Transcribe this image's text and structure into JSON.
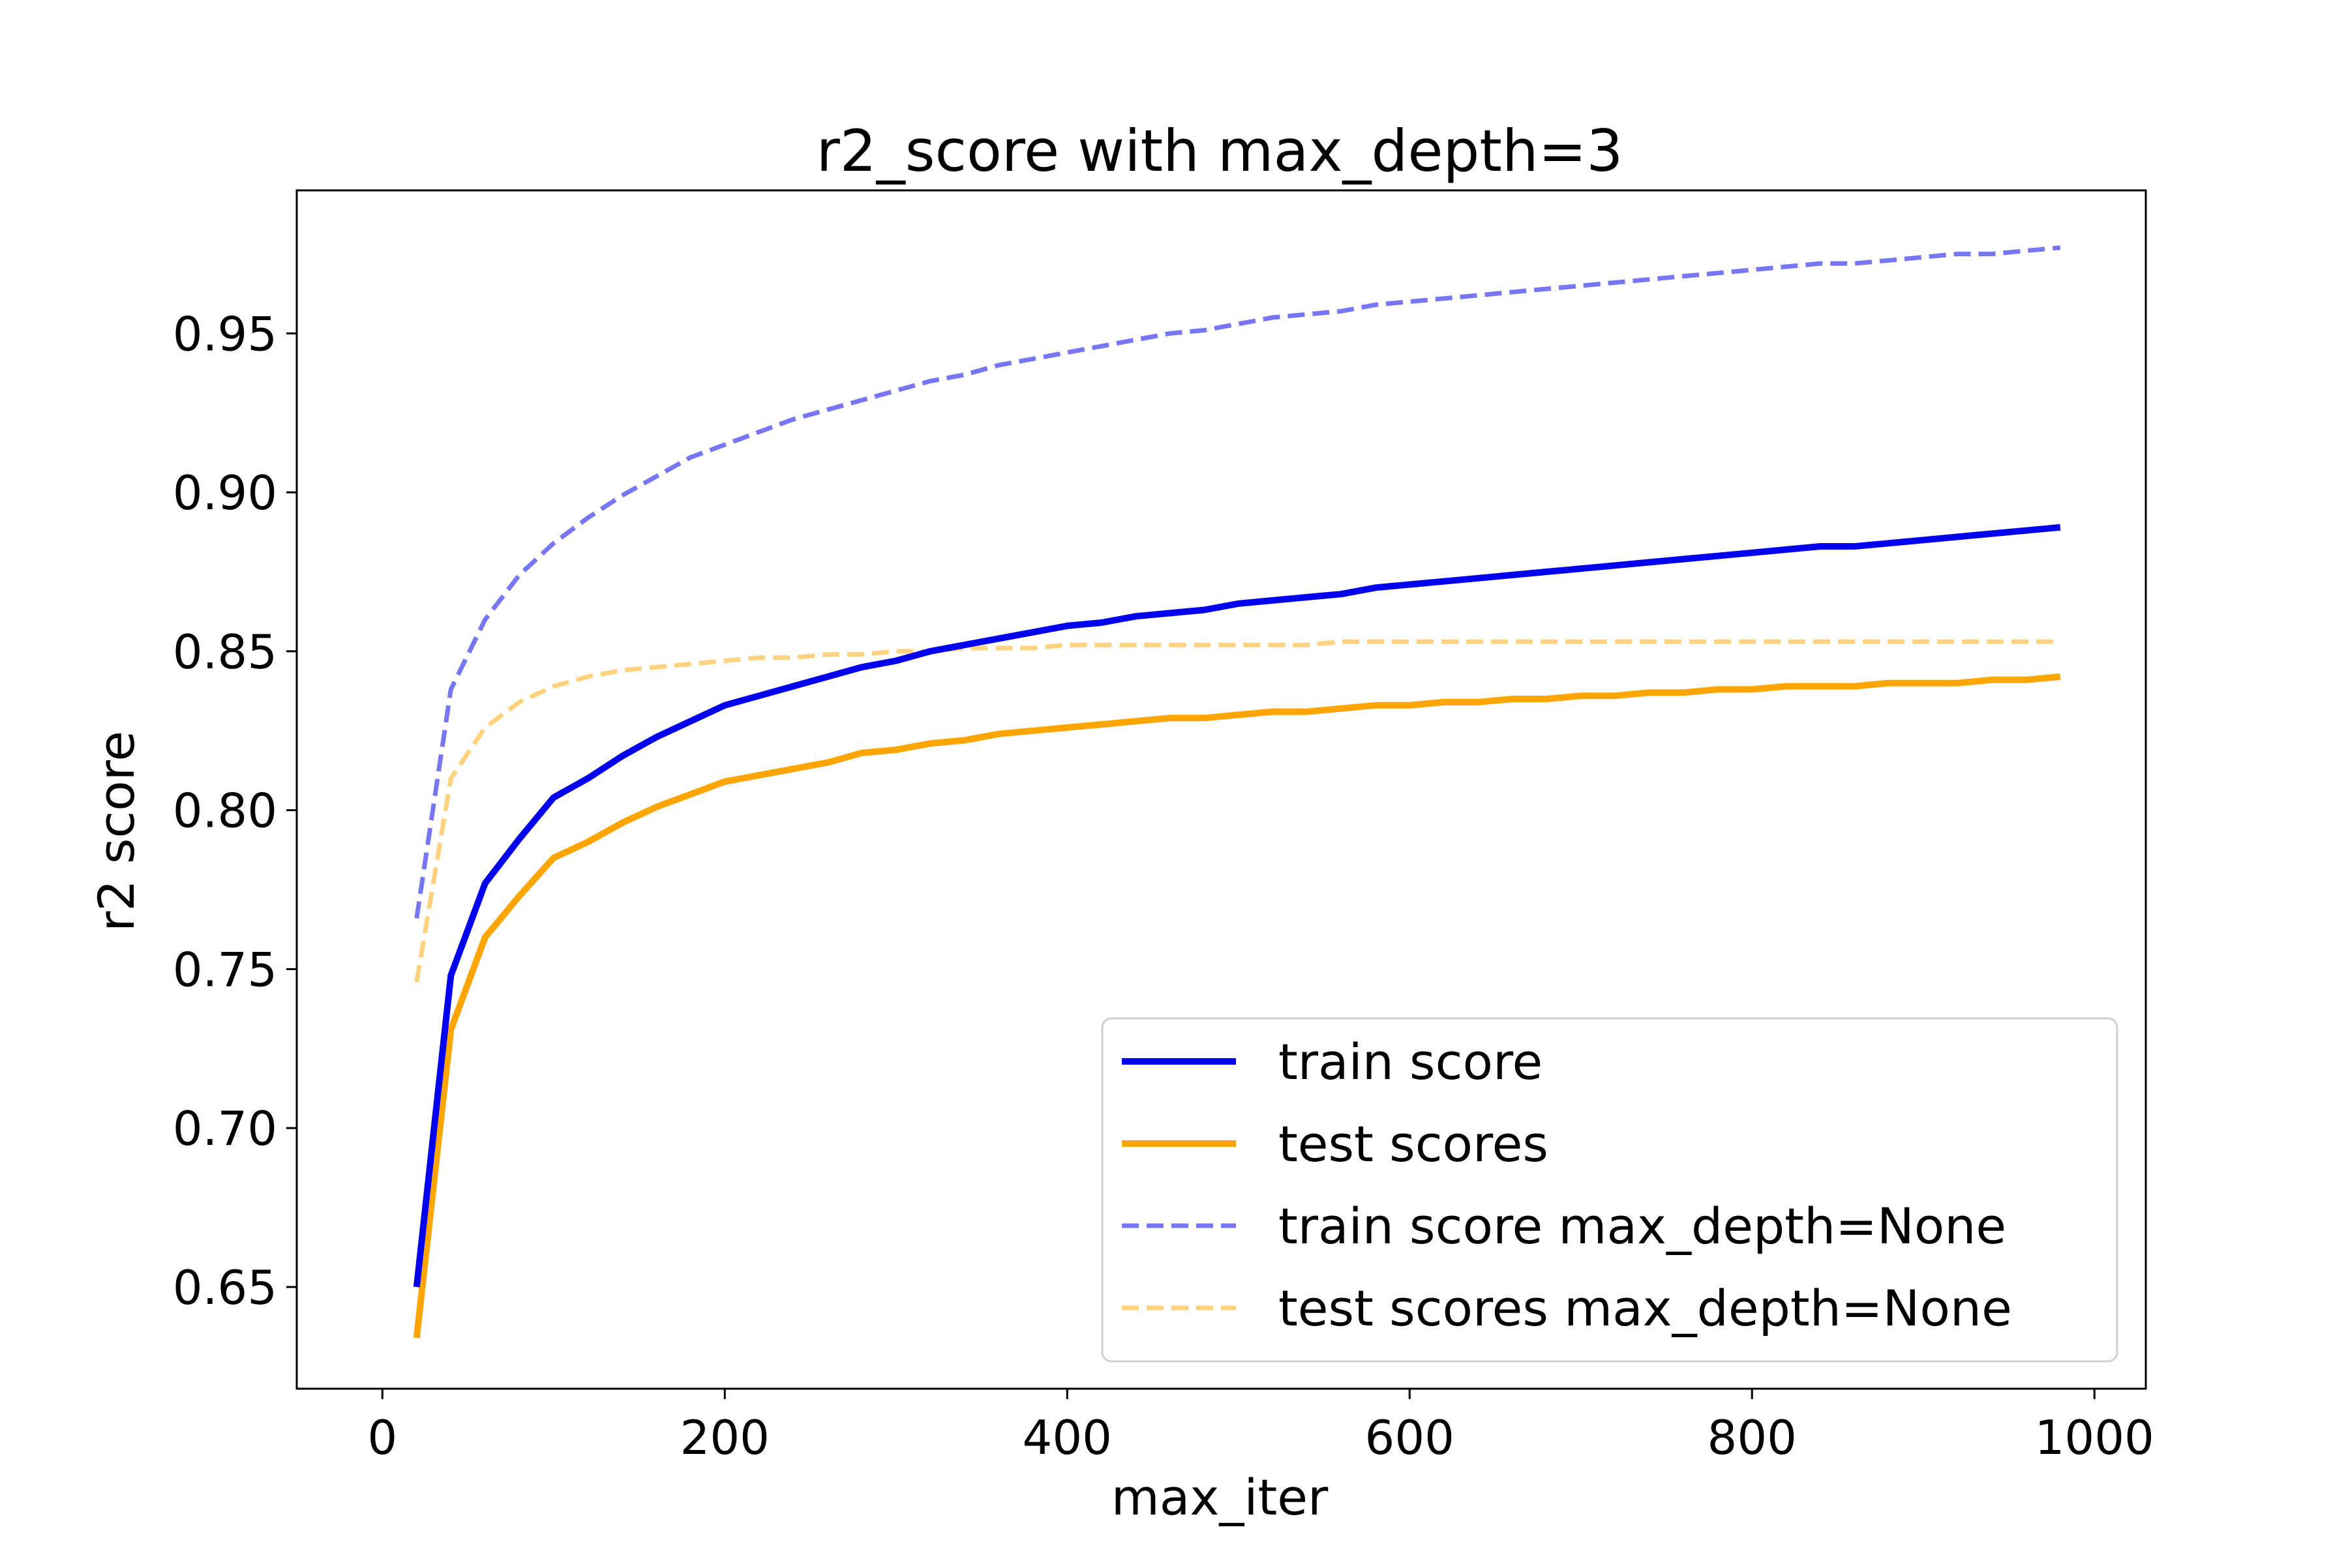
{
  "chart_data": {
    "type": "line",
    "title": "r2_score with max_depth=3",
    "xlabel": "max_iter",
    "ylabel": "r2 score",
    "xlim": [
      -50,
      1030
    ],
    "ylim": [
      0.618,
      0.995
    ],
    "xticks": [
      0,
      200,
      400,
      600,
      800,
      1000
    ],
    "xtick_labels": [
      "0",
      "200",
      "400",
      "600",
      "800",
      "1000"
    ],
    "yticks": [
      0.65,
      0.7,
      0.75,
      0.8,
      0.85,
      0.9,
      0.95
    ],
    "ytick_labels": [
      "0.65",
      "0.70",
      "0.75",
      "0.80",
      "0.85",
      "0.90",
      "0.95"
    ],
    "grid": false,
    "legend_position": "lower-right",
    "x": [
      20,
      40,
      60,
      80,
      100,
      120,
      140,
      160,
      180,
      200,
      220,
      240,
      260,
      280,
      300,
      320,
      340,
      360,
      380,
      400,
      420,
      440,
      460,
      480,
      500,
      520,
      540,
      560,
      580,
      600,
      620,
      640,
      660,
      680,
      700,
      720,
      740,
      760,
      780,
      800,
      820,
      840,
      860,
      880,
      900,
      920,
      940,
      960,
      980
    ],
    "series": [
      {
        "name": "train score",
        "color": "#0000ee",
        "style": "solid",
        "values": [
          0.65,
          0.748,
          0.777,
          0.791,
          0.804,
          0.81,
          0.817,
          0.823,
          0.828,
          0.833,
          0.836,
          0.839,
          0.842,
          0.845,
          0.847,
          0.85,
          0.852,
          0.854,
          0.856,
          0.858,
          0.859,
          0.861,
          0.862,
          0.863,
          0.865,
          0.866,
          0.867,
          0.868,
          0.87,
          0.871,
          0.872,
          0.873,
          0.874,
          0.875,
          0.876,
          0.877,
          0.878,
          0.879,
          0.88,
          0.881,
          0.882,
          0.883,
          0.883,
          0.884,
          0.885,
          0.886,
          0.887,
          0.888,
          0.889
        ]
      },
      {
        "name": "test scores",
        "color": "#ffa500",
        "style": "solid",
        "values": [
          0.634,
          0.731,
          0.76,
          0.773,
          0.785,
          0.79,
          0.796,
          0.801,
          0.805,
          0.809,
          0.811,
          0.813,
          0.815,
          0.818,
          0.819,
          0.821,
          0.822,
          0.824,
          0.825,
          0.826,
          0.827,
          0.828,
          0.829,
          0.829,
          0.83,
          0.831,
          0.831,
          0.832,
          0.833,
          0.833,
          0.834,
          0.834,
          0.835,
          0.835,
          0.836,
          0.836,
          0.837,
          0.837,
          0.838,
          0.838,
          0.839,
          0.839,
          0.839,
          0.84,
          0.84,
          0.84,
          0.841,
          0.841,
          0.842
        ]
      },
      {
        "name": "train score max_depth=None",
        "color": "#7777f6",
        "style": "dashed",
        "values": [
          0.766,
          0.838,
          0.86,
          0.874,
          0.884,
          0.892,
          0.899,
          0.905,
          0.911,
          0.915,
          0.919,
          0.923,
          0.926,
          0.929,
          0.932,
          0.935,
          0.937,
          0.94,
          0.942,
          0.944,
          0.946,
          0.948,
          0.95,
          0.951,
          0.953,
          0.955,
          0.956,
          0.957,
          0.959,
          0.96,
          0.961,
          0.962,
          0.963,
          0.964,
          0.965,
          0.966,
          0.967,
          0.968,
          0.969,
          0.97,
          0.971,
          0.972,
          0.972,
          0.973,
          0.974,
          0.975,
          0.975,
          0.976,
          0.977
        ]
      },
      {
        "name": "test scores max_depth=None",
        "color": "#ffd27f",
        "style": "dashed",
        "values": [
          0.746,
          0.81,
          0.826,
          0.834,
          0.839,
          0.842,
          0.844,
          0.845,
          0.846,
          0.847,
          0.848,
          0.848,
          0.849,
          0.849,
          0.85,
          0.85,
          0.851,
          0.851,
          0.851,
          0.852,
          0.852,
          0.852,
          0.852,
          0.852,
          0.852,
          0.852,
          0.852,
          0.853,
          0.853,
          0.853,
          0.853,
          0.853,
          0.853,
          0.853,
          0.853,
          0.853,
          0.853,
          0.853,
          0.853,
          0.853,
          0.853,
          0.853,
          0.853,
          0.853,
          0.853,
          0.853,
          0.853,
          0.853,
          0.853
        ]
      }
    ]
  }
}
